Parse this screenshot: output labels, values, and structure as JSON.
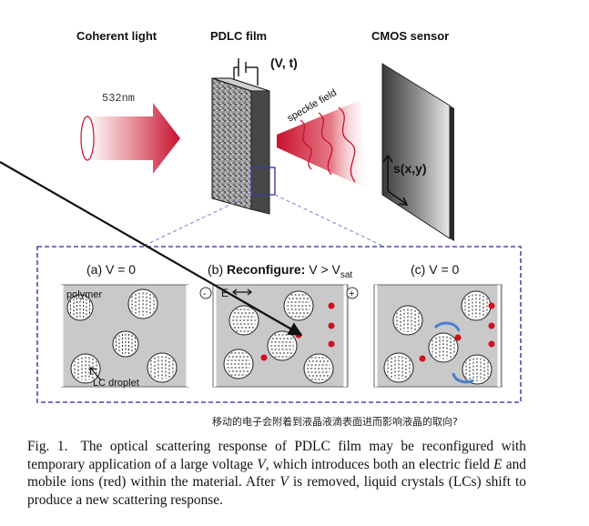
{
  "labels": {
    "coherent_light": "Coherent light",
    "pdlc_film": "PDLC film",
    "voltage": "(V, t)",
    "cmos_sensor": "CMOS sensor",
    "wavelength": "532nm",
    "speckle": "speckle field",
    "signal": "s(x,y)"
  },
  "panels": {
    "a_title": "(a) V = 0",
    "b_prefix": "(b) ",
    "b_bold": "Reconfigure:",
    "b_rest": " V > V",
    "b_sub": "sat",
    "c_title": "(c) V = 0",
    "polymer": "polymer",
    "lc_droplet": "LC droplet",
    "minus": "-",
    "plus": "+",
    "field_e": "E"
  },
  "annotation": "移动的电子会附着到液晶液滴表面进而影响液晶的取向?",
  "caption": {
    "fig_label": "Fig. 1.",
    "t1": "The optical scattering response of PDLC film may be reconfigured with temporary application of a large voltage ",
    "v1": "V",
    "t2": ", which introduces both an electric field ",
    "e": "E",
    "t3": " and mobile ions (red) within the material. After ",
    "v2": "V",
    "t4": " is removed, liquid crystals (LCs) shift to produce a new scattering response."
  },
  "colors": {
    "beam_red": "#c8102e",
    "frame_blue": "#4a4ab0",
    "panel_gray": "#c9c9c9",
    "ion_red": "#d0101a",
    "arrow_blue": "#4a7fd0"
  }
}
